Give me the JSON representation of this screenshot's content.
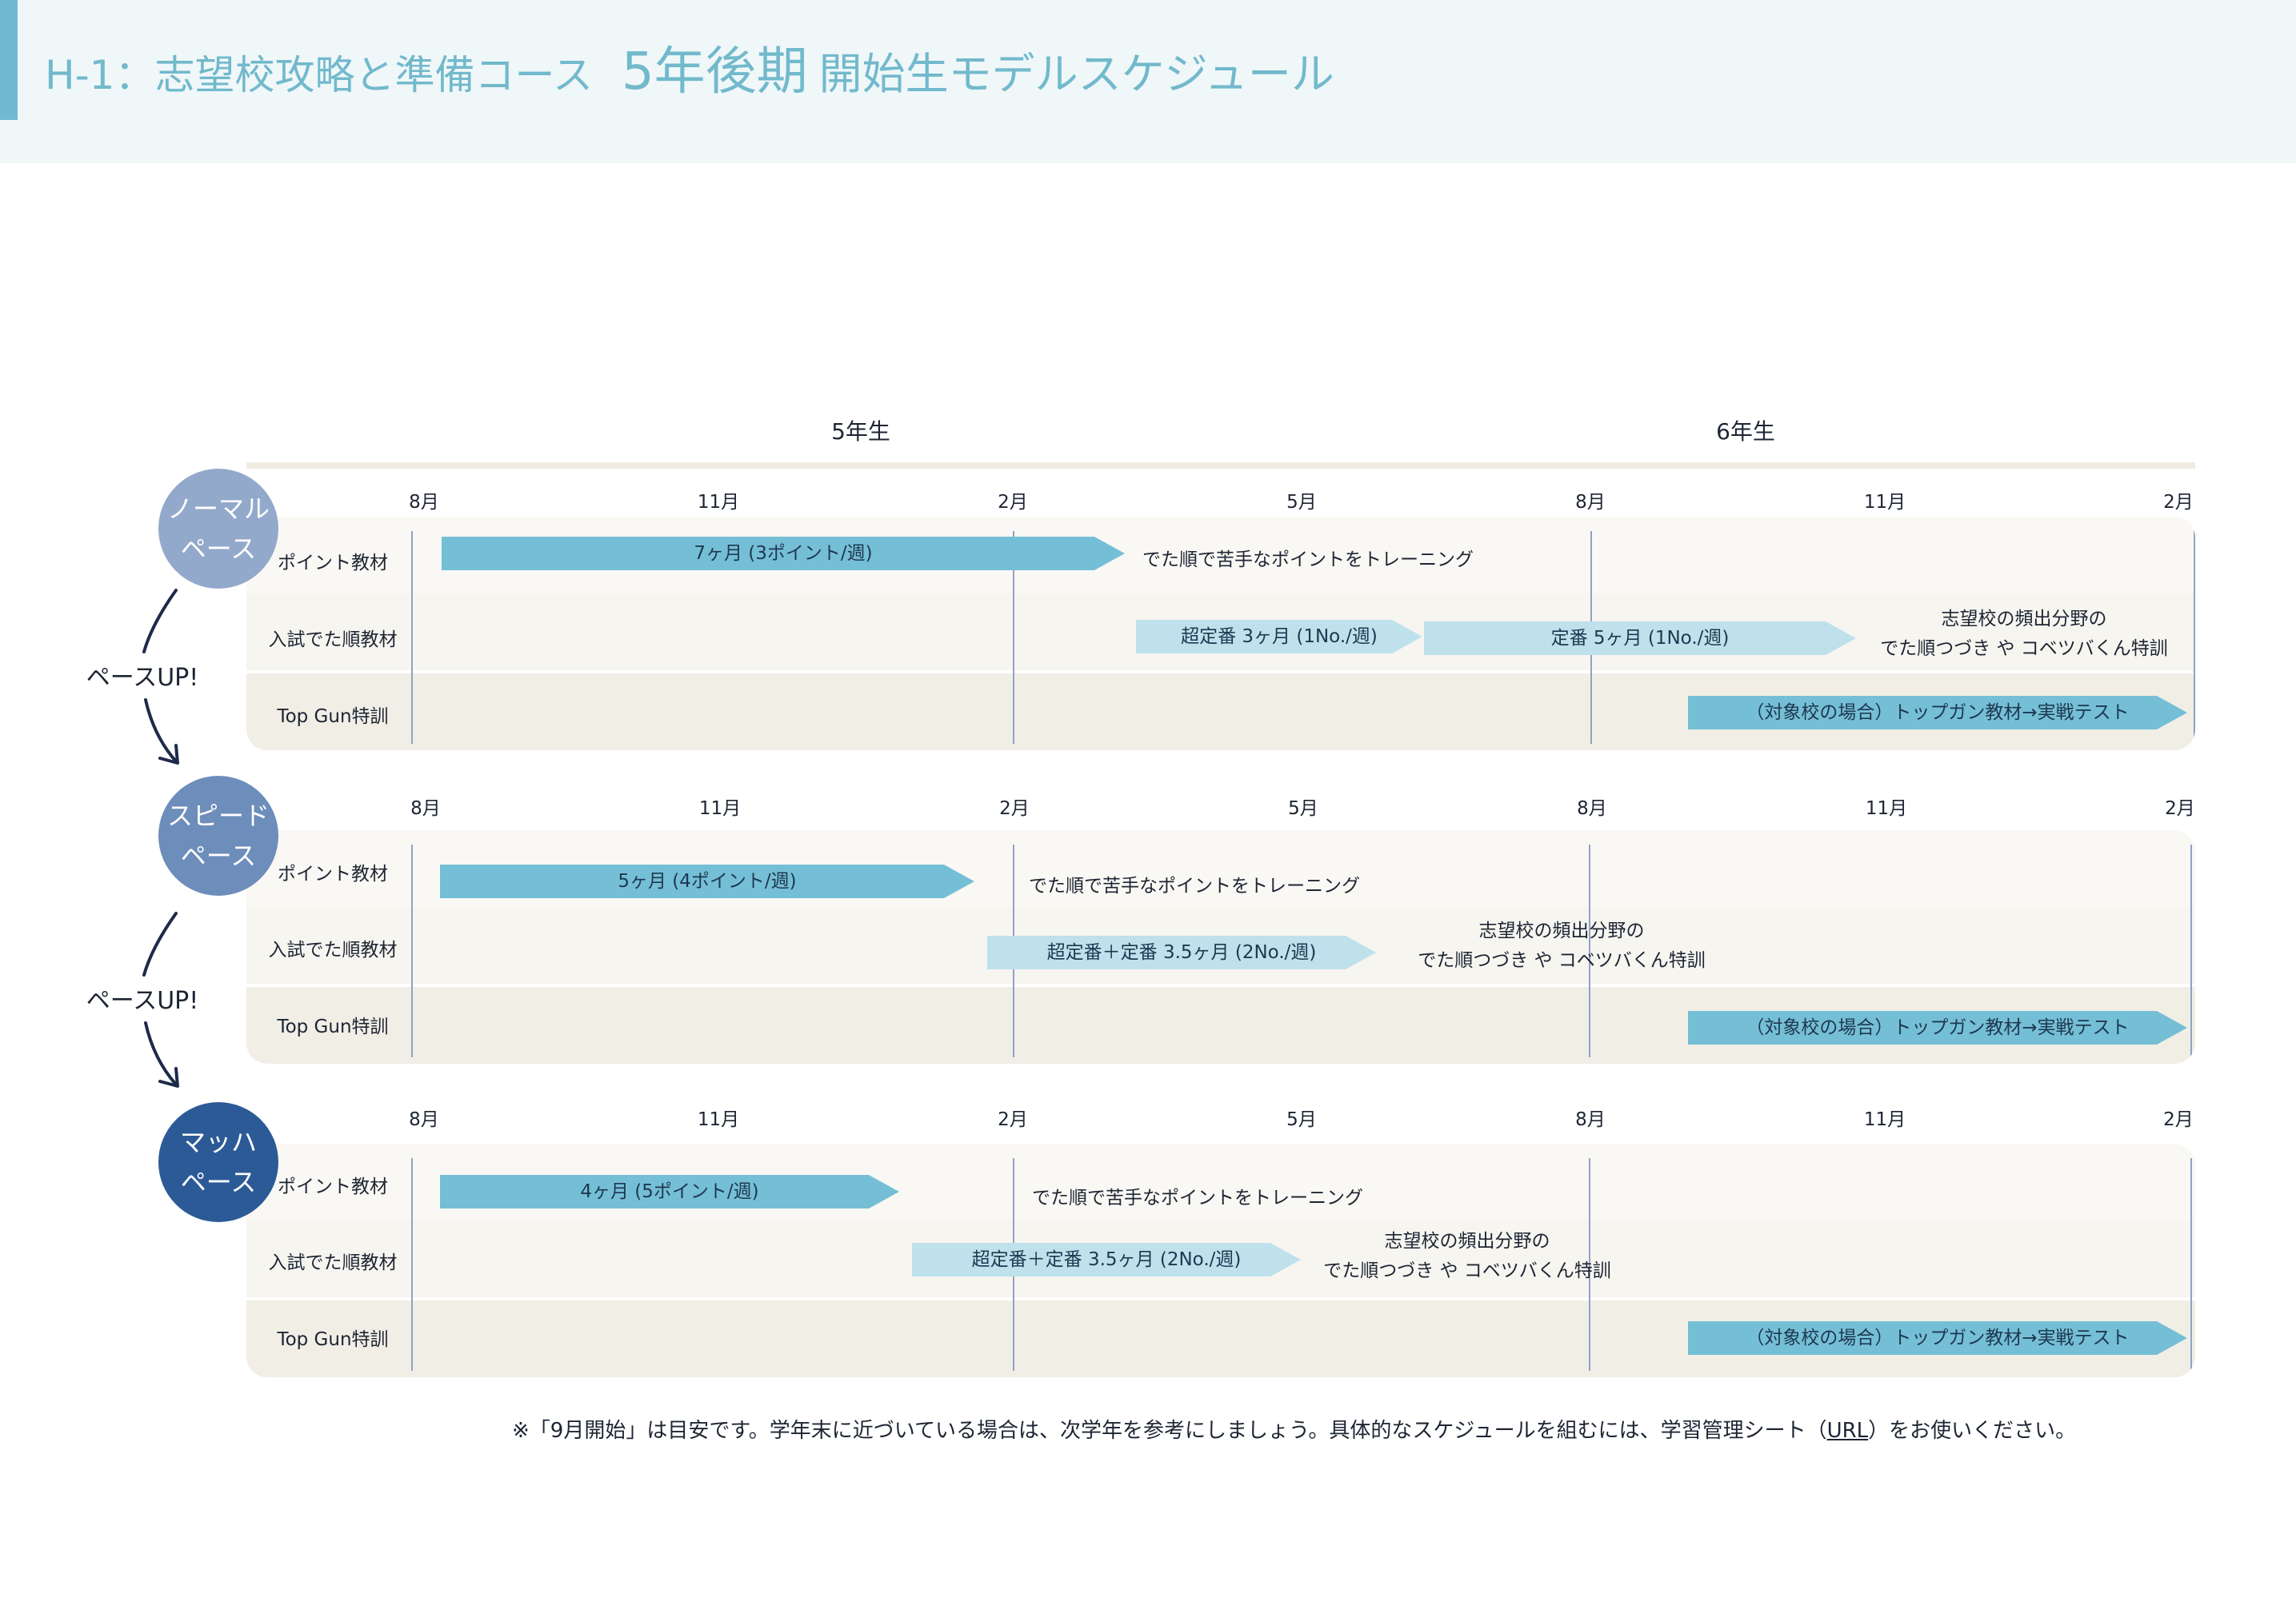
{
  "header": {
    "title_part1": "H-1：志望校攻略と準備コース",
    "title_part2": "5年後期",
    "title_part3": "開始生モデルスケジュール"
  },
  "grades": [
    "5年生",
    "6年生"
  ],
  "months": [
    "8月",
    "11月",
    "2月",
    "5月",
    "8月",
    "11月",
    "2月"
  ],
  "row_labels": [
    "ポイント教材",
    "入試でた順教材",
    "Top Gun特訓"
  ],
  "pace_up_label": "ペースUP!",
  "colors": {
    "accent": "#72b9cc",
    "bar_dark": "#75bfd6",
    "bar_light": "#bfe1ec",
    "normal": "#93a9cb",
    "speed": "#6d8dbb",
    "mach": "#2c5a96"
  },
  "paces": [
    {
      "name_line1": "ノーマル",
      "name_line2": "ペース",
      "point_bar": "7ヶ月 (3ポイント/週)",
      "point_note": "でた順で苦手なポイントをトレーニング",
      "exam_bar1": "超定番 3ヶ月 (1No./週)",
      "exam_bar2": "定番 5ヶ月 (1No./週)",
      "exam_note_line1": "志望校の頻出分野の",
      "exam_note_line2": "でた順つづき や コベツバくん特訓",
      "topgun_bar": "（対象校の場合）トップガン教材→実戦テスト"
    },
    {
      "name_line1": "スピード",
      "name_line2": "ペース",
      "point_bar": "5ヶ月 (4ポイント/週)",
      "point_note": "でた順で苦手なポイントをトレーニング",
      "exam_bar1": "超定番＋定番 3.5ヶ月 (2No./週)",
      "exam_note_line1": "志望校の頻出分野の",
      "exam_note_line2": "でた順つづき や コベツバくん特訓",
      "topgun_bar": "（対象校の場合）トップガン教材→実戦テスト"
    },
    {
      "name_line1": "マッハ",
      "name_line2": "ペース",
      "point_bar": "4ヶ月 (5ポイント/週)",
      "point_note": "でた順で苦手なポイントをトレーニング",
      "exam_bar1": "超定番＋定番 3.5ヶ月 (2No./週)",
      "exam_note_line1": "志望校の頻出分野の",
      "exam_note_line2": "でた順つづき や コベツバくん特訓",
      "topgun_bar": "（対象校の場合）トップガン教材→実戦テスト"
    }
  ],
  "footnote": {
    "text": "※「9月開始」は目安です。学年末に近づいている場合は、次学年を参考にしましょう。具体的なスケジュールを組むには、学習管理シート（",
    "link": "URL",
    "tail": "）をお使いください。"
  }
}
